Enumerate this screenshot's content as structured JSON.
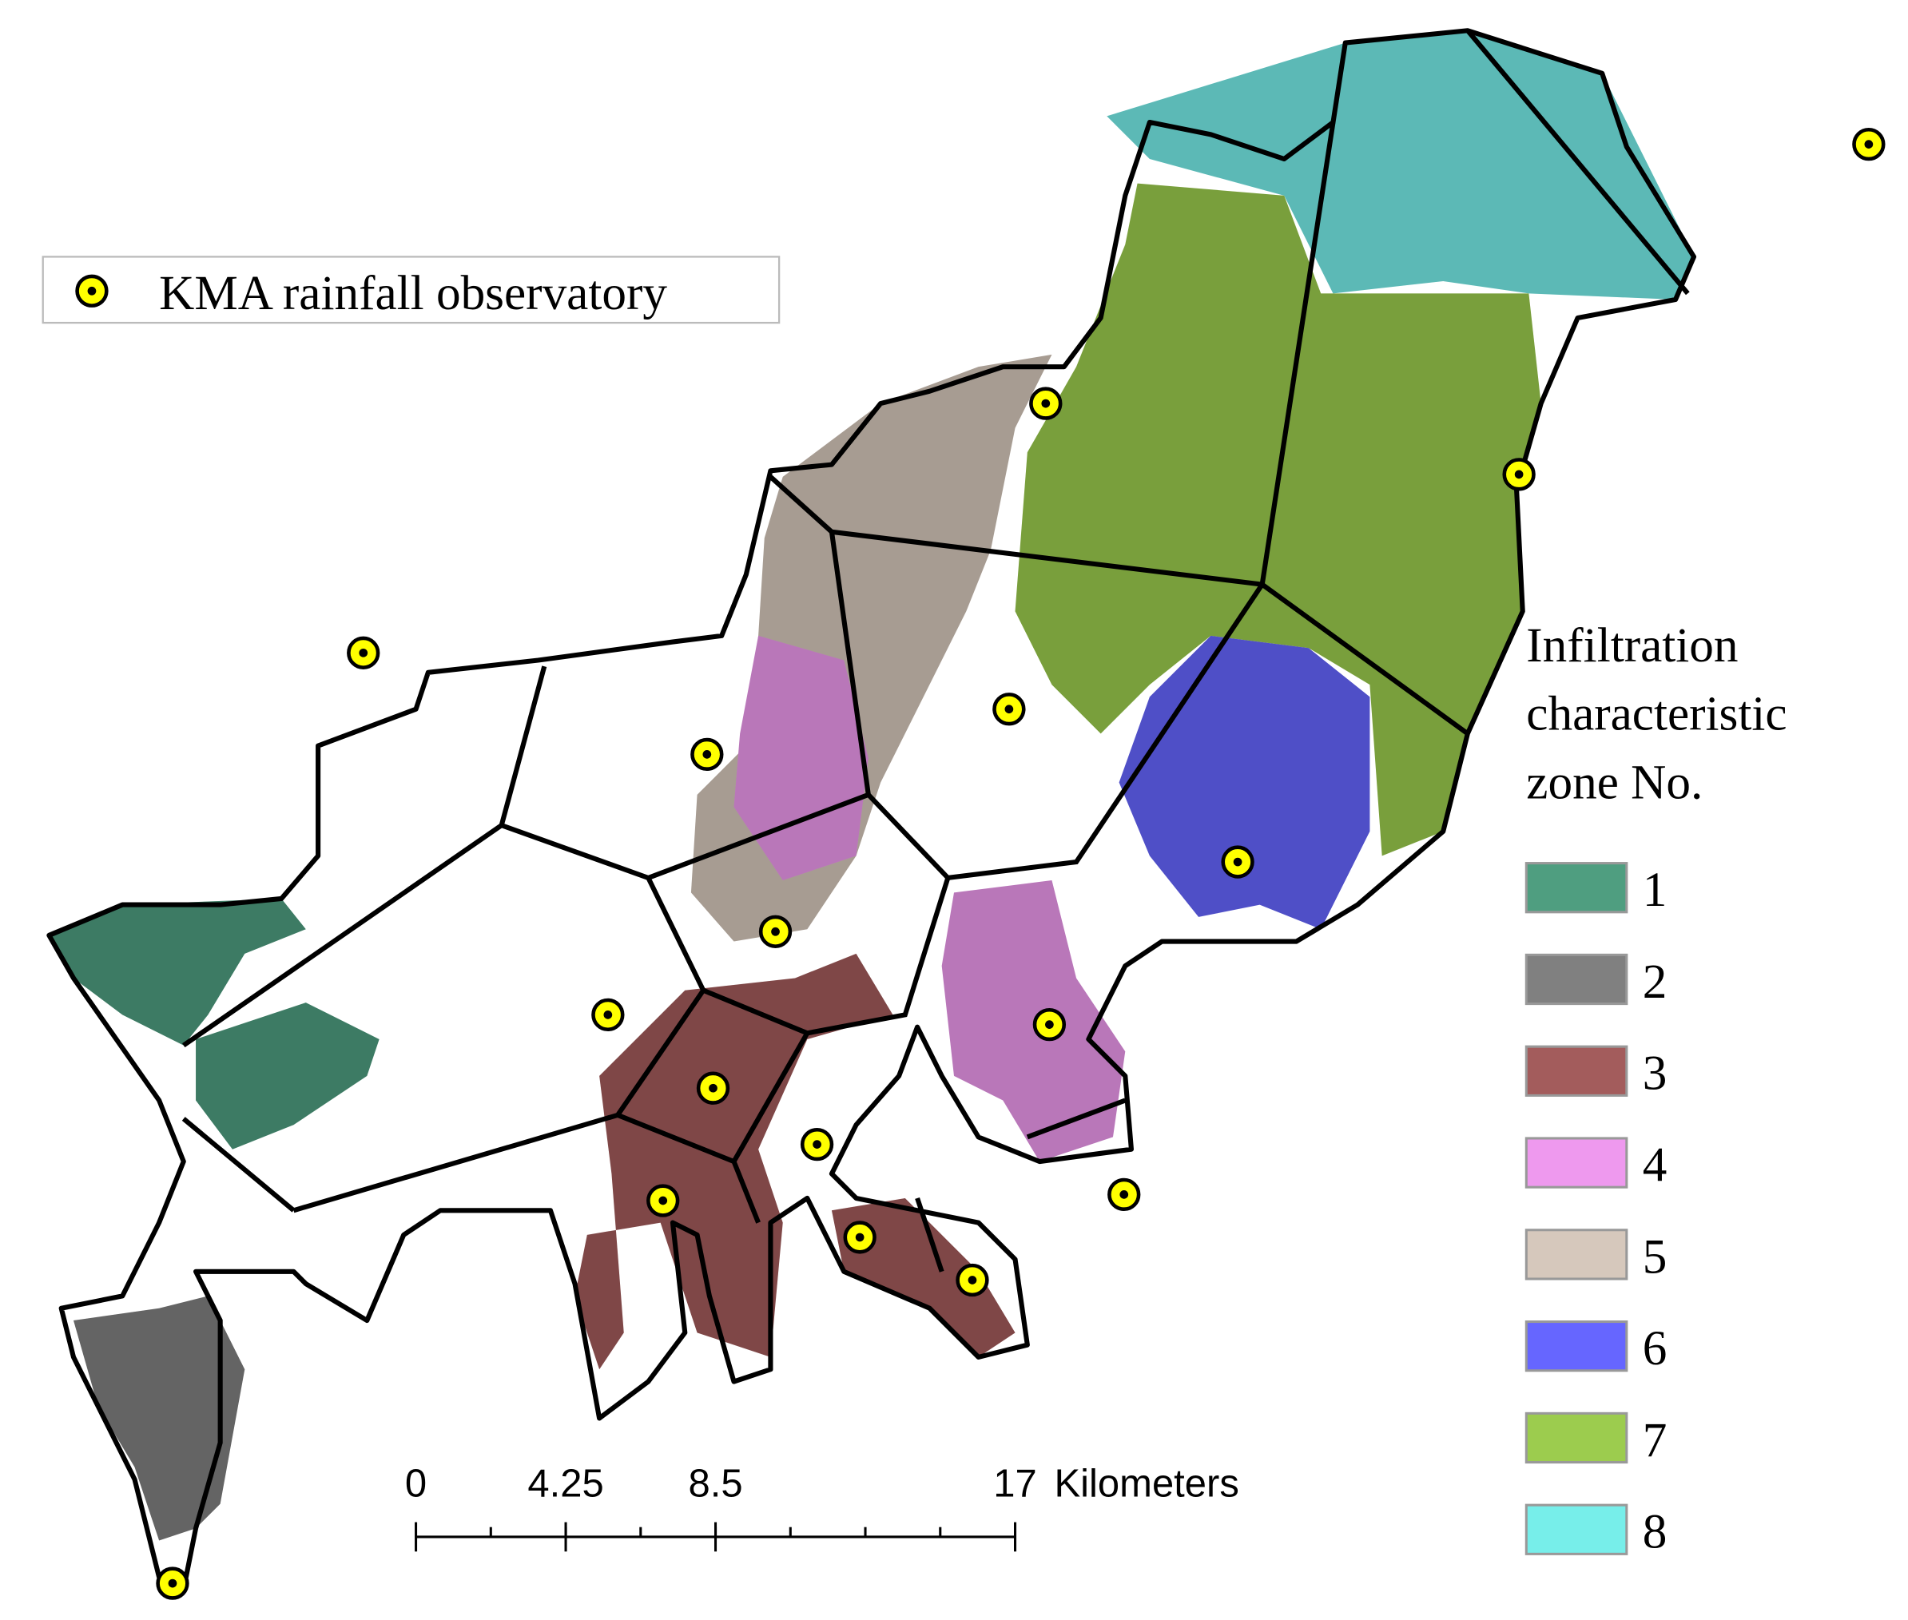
{
  "observatory_legend": {
    "label": "KMA rainfall observatory"
  },
  "zone_legend": {
    "title_lines": [
      "Infiltration",
      "characteristic",
      "zone No."
    ],
    "zones": [
      {
        "label": "1",
        "color": "#4f9e80"
      },
      {
        "label": "2",
        "color": "#808080"
      },
      {
        "label": "3",
        "color": "#a35c5c"
      },
      {
        "label": "4",
        "color": "#ee99ee"
      },
      {
        "label": "5",
        "color": "#d6c8bc"
      },
      {
        "label": "6",
        "color": "#6666ff"
      },
      {
        "label": "7",
        "color": "#9ccc4e"
      },
      {
        "label": "8",
        "color": "#77eeea"
      }
    ]
  },
  "scale_bar": {
    "range": [
      0,
      17
    ],
    "ticks": [
      0,
      4.25,
      8.5,
      17
    ],
    "unit": "Kilometers"
  }
}
